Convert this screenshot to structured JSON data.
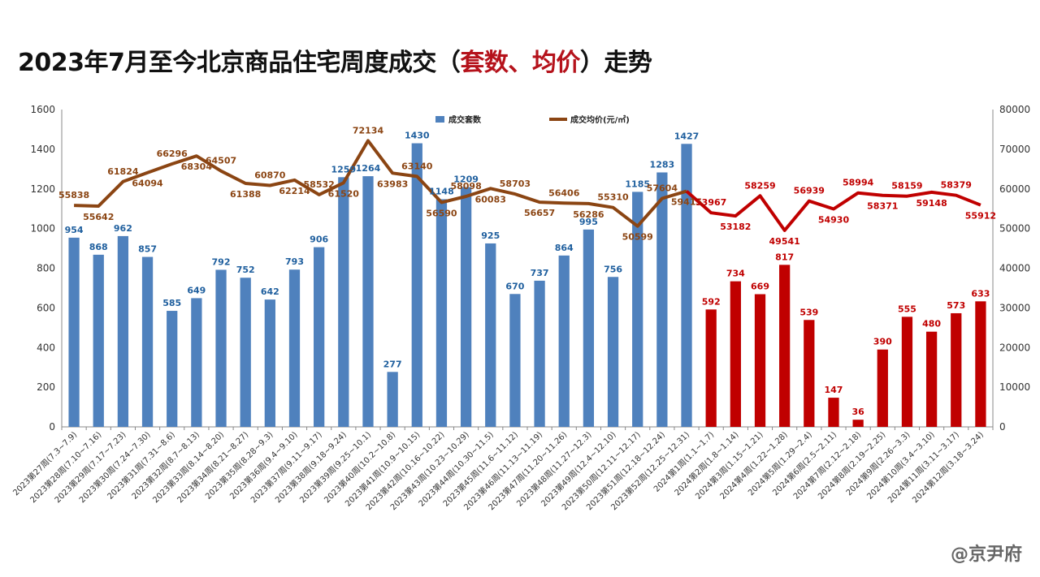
{
  "title": {
    "prefix": "2023年7月至今北京商品住宅周度成交（",
    "highlight": "套数、均价",
    "suffix": "）走势"
  },
  "watermark": "@京尹府",
  "colors": {
    "bar_2023": "#4f81bd",
    "bar_2024": "#c00000",
    "line_2023": "#8b4513",
    "line_2024": "#c00000",
    "label_blue": "#1f5f9e",
    "label_brown": "#8b4513",
    "label_red": "#c00000"
  },
  "chart_data": {
    "type": "bar+line",
    "categories": [
      "2023第27周(7.3~7.9)",
      "2023第28周(7.10~7.16)",
      "2023第29周(7.17~7.23)",
      "2023第30周(7.24~7.30)",
      "2023第31周(7.31~8.6)",
      "2023第32周(8.7~8.13)",
      "2023第33周(8.14~8.20)",
      "2023第34周(8.21~8.27)",
      "2023第35周(8.28~9.3)",
      "2023第36周(9.4~9.10)",
      "2023第37周(9.11~9.17)",
      "2023第38周(9.18~9.24)",
      "2023第39周(9.25~10.1)",
      "2023第40周(10.2~10.8)",
      "2023第41周(10.9~10.15)",
      "2023第42周(10.16~10.22)",
      "2023第43周(10.23~10.29)",
      "2023第44周(10.30~11.5)",
      "2023第45周(11.6~11.12)",
      "2023第46周(11.13~11.19)",
      "2023第47周(11.20~11.26)",
      "2023第48周(11.27~12.3)",
      "2023第49周(12.4~12.10)",
      "2023第50周(12.11~12.17)",
      "2023第51周(12.18~12.24)",
      "2023第52周(12.25~12.31)",
      "2024第1周(1.1~1.7)",
      "2024第2周(1.8~1.14)",
      "2024第3周(1.15~1.21)",
      "2024第4周(1.22~1.28)",
      "2024第5周(1.29~2.4)",
      "2024第6周(2.5~2.11)",
      "2024第7周(2.12~2.18)",
      "2024第8周(2.19~2.25)",
      "2024第9周(2.26~3.3)",
      "2024第10周(3.4~3.10)",
      "2024第11周(3.11~3.17)",
      "2024第12周(3.18~3.24)"
    ],
    "series": [
      {
        "name": "成交套数",
        "axis": "left",
        "kind": "bar",
        "values": [
          954,
          868,
          962,
          857,
          585,
          649,
          792,
          752,
          642,
          793,
          906,
          1259,
          1264,
          277,
          1430,
          1148,
          1209,
          925,
          670,
          737,
          864,
          995,
          756,
          1185,
          1283,
          1427,
          592,
          734,
          669,
          817,
          539,
          147,
          36,
          390,
          555,
          480,
          573,
          633
        ]
      },
      {
        "name": "成交均价(元/㎡)",
        "axis": "right",
        "kind": "line",
        "values": [
          55838,
          55642,
          61824,
          64094,
          66296,
          68304,
          64507,
          61388,
          60870,
          62214,
          58532,
          61520,
          72134,
          63983,
          63140,
          56590,
          58098,
          60083,
          58703,
          56657,
          56406,
          56286,
          55310,
          50599,
          57604,
          59415,
          53967,
          53182,
          58259,
          49541,
          56939,
          54930,
          58994,
          58371,
          58159,
          59148,
          58379,
          55912
        ]
      }
    ],
    "highlight_from_index": 26,
    "ylim_left": [
      0,
      1600
    ],
    "yticks_left": [
      0,
      200,
      400,
      600,
      800,
      1000,
      1200,
      1400,
      1600
    ],
    "ylim_right": [
      0,
      80000
    ],
    "yticks_right": [
      0,
      10000,
      20000,
      30000,
      40000,
      50000,
      60000,
      70000,
      80000
    ],
    "legend": [
      "成交套数",
      "成交均价(元/㎡)"
    ],
    "legend_position": "top",
    "grid": false
  }
}
